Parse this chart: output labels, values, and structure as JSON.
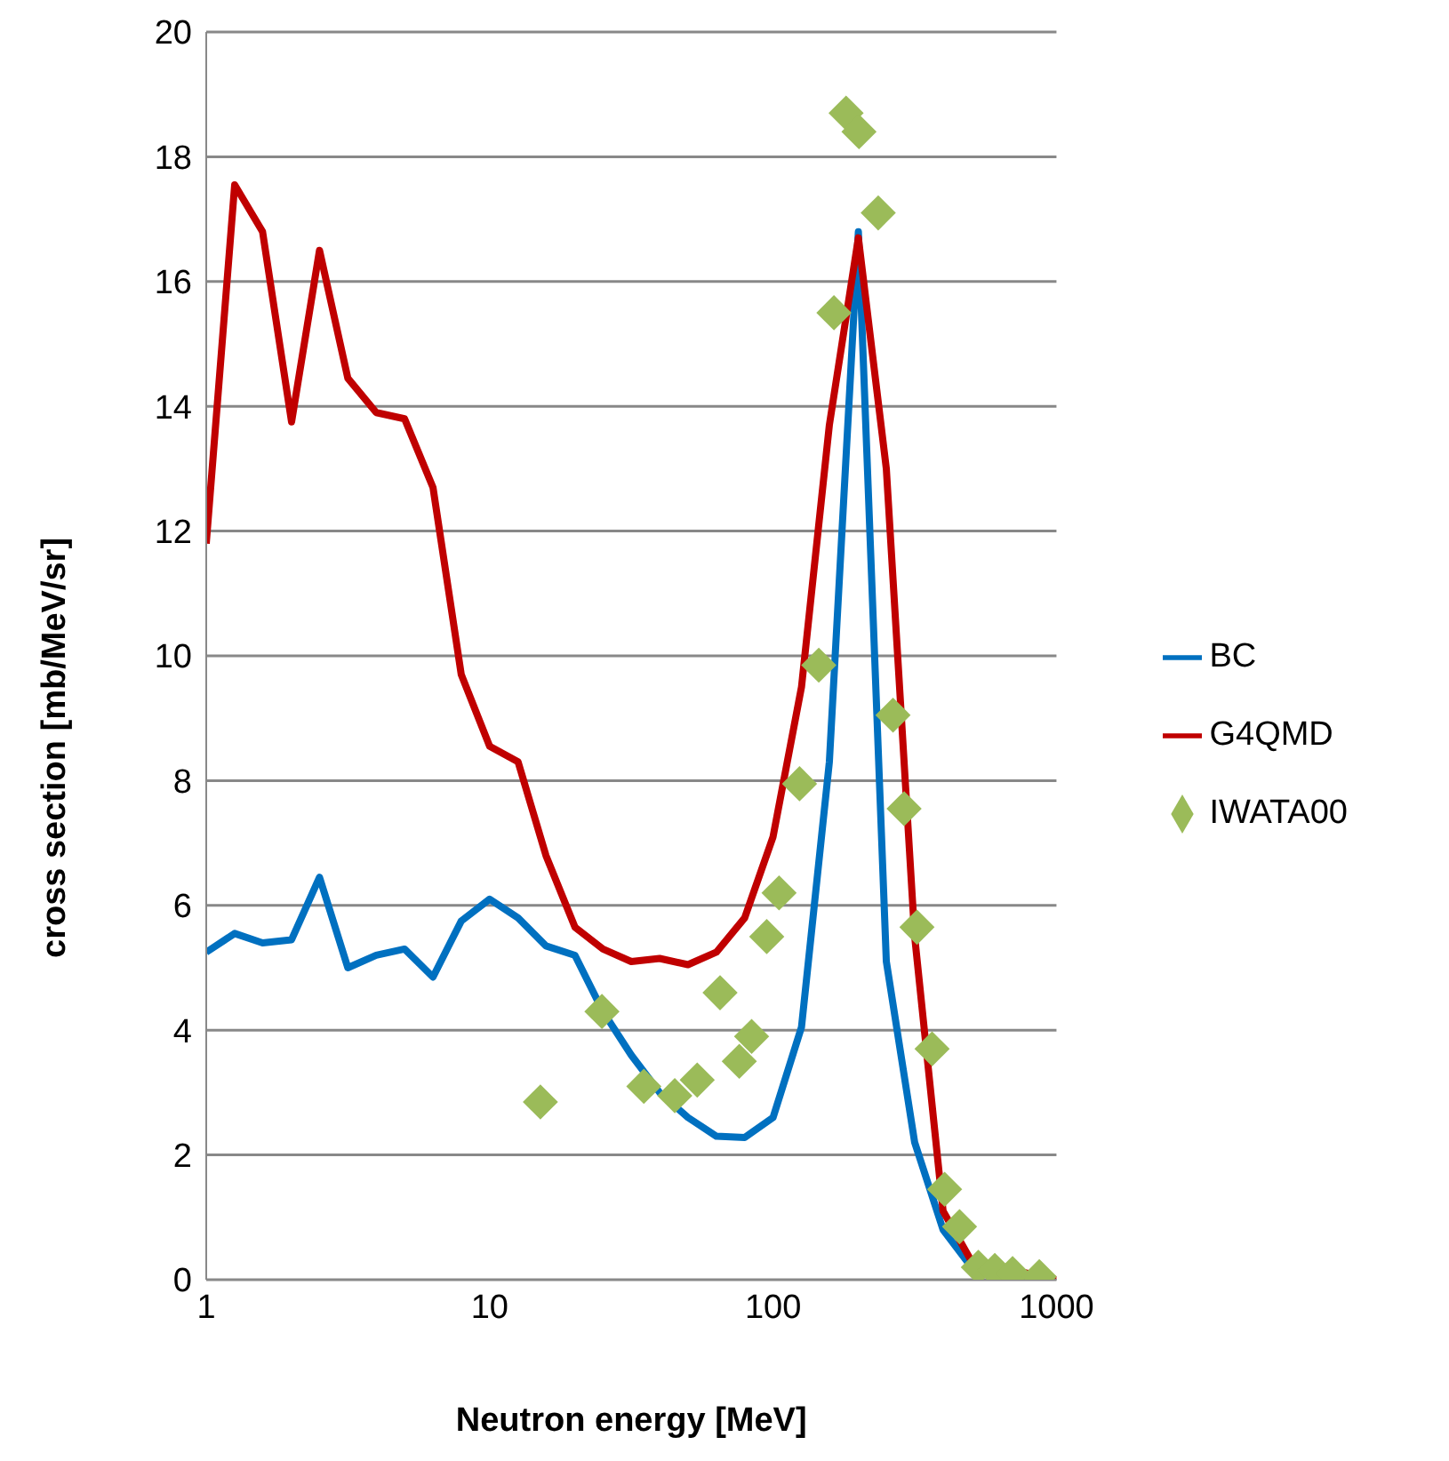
{
  "chart_data": {
    "type": "line",
    "xlabel": "Neutron energy [MeV]",
    "ylabel": "cross section [mb/MeV/sr]",
    "log": "x",
    "xlim": [
      1,
      1000
    ],
    "xticks": [
      1,
      10,
      100,
      1000
    ],
    "ylim": [
      0,
      20
    ],
    "yticks": [
      0,
      2,
      4,
      6,
      8,
      10,
      12,
      14,
      16,
      18,
      20
    ],
    "grid": "y",
    "legend": "right",
    "marker": "none",
    "line_style": "solid",
    "series": [
      {
        "name": "BC",
        "color": "#0070c0",
        "x": [
          1,
          1.26,
          1.58,
          2,
          2.51,
          3.16,
          3.98,
          5.01,
          6.31,
          7.94,
          10,
          12.6,
          15.8,
          20,
          25.1,
          31.6,
          39.8,
          50.1,
          63.1,
          79.4,
          100,
          126,
          158,
          200,
          251,
          316,
          398,
          501
        ],
        "values": [
          5.25,
          5.55,
          5.4,
          5.45,
          6.45,
          5.0,
          5.2,
          5.3,
          4.85,
          5.75,
          6.1,
          5.8,
          5.35,
          5.2,
          4.3,
          3.6,
          3.0,
          2.6,
          2.3,
          2.28,
          2.6,
          4.05,
          8.3,
          16.8,
          5.1,
          2.2,
          0.8,
          0.2
        ]
      },
      {
        "name": "G4QMD",
        "color": "#c00000",
        "x": [
          1,
          1.26,
          1.58,
          2,
          2.51,
          3.16,
          3.98,
          5.01,
          6.31,
          7.94,
          10,
          12.6,
          15.8,
          20,
          25.1,
          31.6,
          39.8,
          50.1,
          63.1,
          79.4,
          100,
          126,
          158,
          200,
          251,
          316,
          398,
          501,
          1000
        ],
        "values": [
          11.8,
          17.55,
          16.8,
          13.75,
          16.5,
          14.45,
          13.9,
          13.8,
          12.7,
          9.7,
          8.55,
          8.3,
          6.8,
          5.65,
          5.3,
          5.1,
          5.15,
          5.05,
          5.25,
          5.8,
          7.1,
          9.5,
          13.7,
          16.7,
          13.0,
          5.5,
          1.1,
          0.3,
          0
        ]
      },
      {
        "name": "IWATA00",
        "type": "scatter",
        "marker": "diamond",
        "color": "#9bbb59",
        "x": [
          15.1,
          24.9,
          35,
          45,
          54,
          65,
          76,
          84,
          95,
          105,
          124,
          145,
          164,
          181,
          201,
          235,
          265,
          290,
          322,
          364,
          403,
          455,
          530,
          606,
          700,
          870
        ],
        "values": [
          2.85,
          4.3,
          3.1,
          2.95,
          3.2,
          4.6,
          3.5,
          3.9,
          5.5,
          6.2,
          7.95,
          9.85,
          15.5,
          18.7,
          18.4,
          17.1,
          9.05,
          7.55,
          5.65,
          3.7,
          1.45,
          0.85,
          0.2,
          0.15,
          0.1,
          0.05
        ]
      }
    ]
  }
}
